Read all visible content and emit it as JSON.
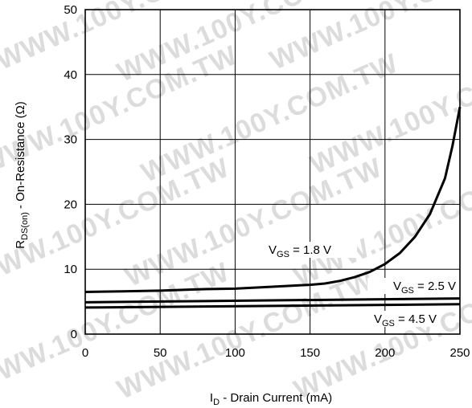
{
  "watermark": "WWW.100Y.COM.TW",
  "chart_data": {
    "type": "line",
    "ylabel": "R",
    "ylabel_sub": "DS(on)",
    "ylabel_rest": " - On-Resistance (Ω)",
    "xlabel": "I",
    "xlabel_sub": "D",
    "xlabel_rest": " - Drain Current (mA)",
    "xlim": [
      0,
      250
    ],
    "ylim": [
      0,
      50
    ],
    "xticks": [
      "0",
      "50",
      "100",
      "150",
      "200",
      "250"
    ],
    "yticks": [
      "0",
      "10",
      "20",
      "30",
      "40",
      "50"
    ],
    "grid": true,
    "series": [
      {
        "label_main": "V",
        "label_sub": "GS",
        "label_rest": " = 1.8 V",
        "x": [
          0,
          25,
          50,
          75,
          100,
          125,
          150,
          160,
          170,
          180,
          190,
          200,
          210,
          220,
          230,
          240,
          245,
          250
        ],
        "y": [
          6.5,
          6.6,
          6.7,
          6.9,
          7.0,
          7.3,
          7.6,
          7.8,
          8.2,
          8.8,
          9.6,
          10.8,
          12.5,
          15.0,
          18.5,
          24.0,
          29.0,
          35.0
        ]
      },
      {
        "label_main": "V",
        "label_sub": "GS",
        "label_rest": " = 2.5 V",
        "x": [
          0,
          250
        ],
        "y": [
          4.9,
          5.5
        ]
      },
      {
        "label_main": "V",
        "label_sub": "GS",
        "label_rest": " = 4.5 V",
        "x": [
          0,
          250
        ],
        "y": [
          4.1,
          4.6
        ]
      }
    ]
  }
}
